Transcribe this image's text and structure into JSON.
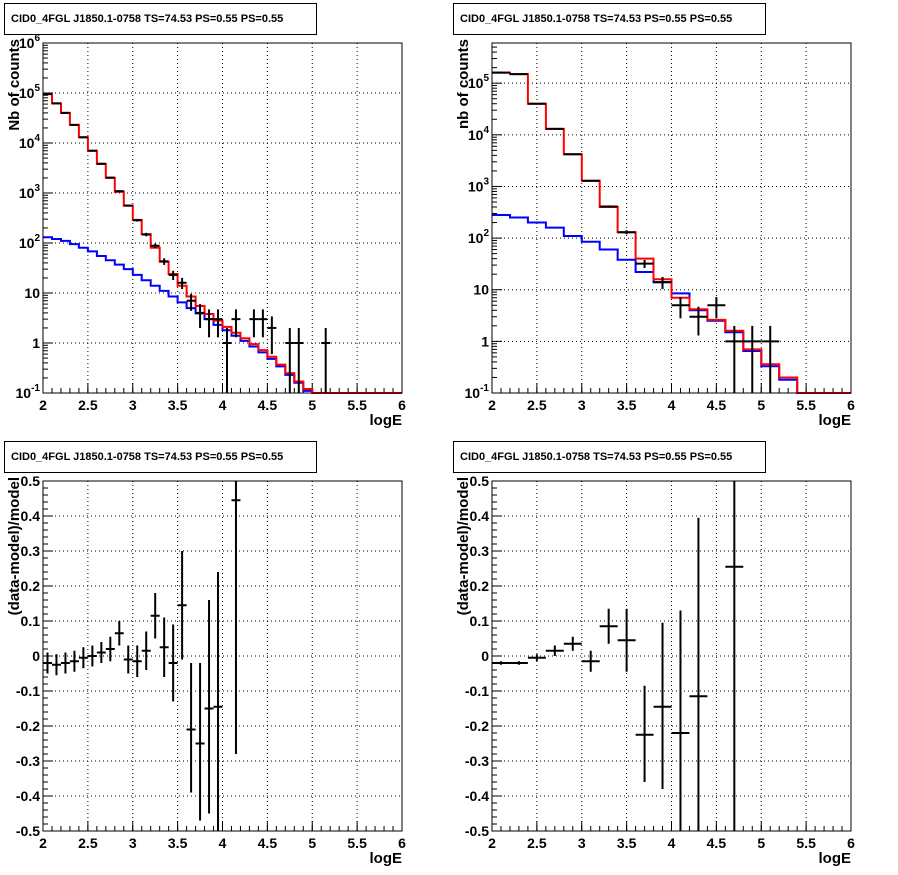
{
  "colors": {
    "axis": "#000000",
    "grid": "#000000",
    "data": "#000000",
    "total_model": "#ff0000",
    "source_model": "#0000ff"
  },
  "chart_data": [
    {
      "type": "step",
      "title": "CID0_4FGL J1850.1-0758 TS=74.53 PS=0.55 PS=0.55",
      "xlabel": "logE",
      "ylabel": "Nb of counts",
      "xlim": [
        2,
        6
      ],
      "ylim": [
        0.1,
        1000000
      ],
      "yscale": "log",
      "grid": true,
      "x_ticks": [
        2,
        2.5,
        3,
        3.5,
        4,
        4.5,
        5,
        5.5,
        6
      ],
      "y_ticks": [
        0.1,
        1,
        10,
        100,
        1000,
        10000,
        100000,
        1000000
      ],
      "y_tick_labels": [
        "10^-1",
        "1",
        "10",
        "10^2",
        "10^3",
        "10^4",
        "10^5",
        "10^6"
      ],
      "bin_width": 0.1,
      "bin_lows": [
        2.0,
        2.1,
        2.2,
        2.3,
        2.4,
        2.5,
        2.6,
        2.7,
        2.8,
        2.9,
        3.0,
        3.1,
        3.2,
        3.3,
        3.4,
        3.5,
        3.6,
        3.7,
        3.8,
        3.9,
        4.0,
        4.1,
        4.2,
        4.3,
        4.4,
        4.5,
        4.6,
        4.7,
        4.8,
        4.9,
        5.0,
        5.1,
        5.2,
        5.3,
        5.4,
        5.5,
        5.6,
        5.7,
        5.8,
        5.9
      ],
      "series": [
        {
          "role": "total_model",
          "values": [
            95000,
            62000,
            40000,
            23000,
            13000,
            7000,
            3800,
            2000,
            1050,
            560,
            290,
            150,
            80,
            42,
            24,
            14,
            8.5,
            5.5,
            3.8,
            2.8,
            2.1,
            1.6,
            1.25,
            0.95,
            0.72,
            0.53,
            0.37,
            0.25,
            0.17,
            0.12,
            0.1,
            0.1,
            0.1,
            0.1,
            0.1,
            0.1,
            0.1,
            0.1,
            0.1,
            0.1
          ]
        },
        {
          "role": "source_model",
          "values": [
            130,
            120,
            110,
            95,
            80,
            68,
            55,
            45,
            37,
            30,
            23,
            18,
            14,
            11,
            8.5,
            6.5,
            5,
            3.9,
            3.0,
            2.3,
            1.8,
            1.4,
            1.1,
            0.85,
            0.65,
            0.48,
            0.34,
            0.23,
            0.16,
            0.11,
            0.1,
            0.1,
            0.1,
            0.1,
            0.1,
            0.1,
            0.1,
            0.1,
            0.1,
            0.1
          ]
        }
      ],
      "points": [
        {
          "x": 2.05,
          "y": 95000,
          "ylo": 94700,
          "yhi": 95300
        },
        {
          "x": 2.15,
          "y": 62000,
          "ylo": 61750,
          "yhi": 62250
        },
        {
          "x": 2.25,
          "y": 40000,
          "ylo": 39800,
          "yhi": 40200
        },
        {
          "x": 2.35,
          "y": 23000,
          "ylo": 22850,
          "yhi": 23150
        },
        {
          "x": 2.45,
          "y": 13000,
          "ylo": 12890,
          "yhi": 13110
        },
        {
          "x": 2.55,
          "y": 7000,
          "ylo": 6920,
          "yhi": 7080
        },
        {
          "x": 2.65,
          "y": 3850,
          "ylo": 3790,
          "yhi": 3910
        },
        {
          "x": 2.75,
          "y": 2030,
          "ylo": 1985,
          "yhi": 2075
        },
        {
          "x": 2.85,
          "y": 1090,
          "ylo": 1057,
          "yhi": 1123
        },
        {
          "x": 2.95,
          "y": 560,
          "ylo": 536,
          "yhi": 584
        },
        {
          "x": 3.05,
          "y": 285,
          "ylo": 268,
          "yhi": 302
        },
        {
          "x": 3.15,
          "y": 148,
          "ylo": 136,
          "yhi": 160
        },
        {
          "x": 3.25,
          "y": 88,
          "ylo": 79,
          "yhi": 97
        },
        {
          "x": 3.35,
          "y": 43,
          "ylo": 36.5,
          "yhi": 49.5
        },
        {
          "x": 3.45,
          "y": 23,
          "ylo": 18.2,
          "yhi": 27.8
        },
        {
          "x": 3.55,
          "y": 16,
          "ylo": 12,
          "yhi": 20
        },
        {
          "x": 3.65,
          "y": 7,
          "ylo": 4.4,
          "yhi": 9.6
        },
        {
          "x": 3.75,
          "y": 4,
          "ylo": 2.0,
          "yhi": 6.0
        },
        {
          "x": 3.85,
          "y": 3,
          "ylo": 1.3,
          "yhi": 4.7
        },
        {
          "x": 3.95,
          "y": 3,
          "ylo": 1.3,
          "yhi": 4.7
        },
        {
          "x": 4.05,
          "y": 1,
          "ylo": 0.1,
          "yhi": 2
        },
        {
          "x": 4.15,
          "y": 3,
          "ylo": 1.3,
          "yhi": 4.7
        },
        {
          "x": 4.35,
          "y": 3,
          "ylo": 1.3,
          "yhi": 4.7
        },
        {
          "x": 4.45,
          "y": 3,
          "ylo": 1.3,
          "yhi": 4.7
        },
        {
          "x": 4.55,
          "y": 2,
          "ylo": 0.6,
          "yhi": 3.4
        },
        {
          "x": 4.75,
          "y": 1,
          "ylo": 0.1,
          "yhi": 2
        },
        {
          "x": 4.85,
          "y": 1,
          "ylo": 0.1,
          "yhi": 2
        },
        {
          "x": 5.15,
          "y": 1,
          "ylo": 0.1,
          "yhi": 2
        }
      ]
    },
    {
      "type": "step",
      "title": "CID0_4FGL J1850.1-0758 TS=74.53 PS=0.55 PS=0.55",
      "xlabel": "logE",
      "ylabel": "nb of counts",
      "xlim": [
        2,
        6
      ],
      "ylim": [
        0.1,
        600000
      ],
      "yscale": "log",
      "grid": true,
      "x_ticks": [
        2,
        2.5,
        3,
        3.5,
        4,
        4.5,
        5,
        5.5,
        6
      ],
      "y_ticks": [
        0.1,
        1,
        10,
        100,
        1000,
        10000,
        100000
      ],
      "y_tick_labels": [
        "10^-1",
        "1",
        "10",
        "10^2",
        "10^3",
        "10^4",
        "10^5"
      ],
      "bin_width": 0.2,
      "bin_lows": [
        2.0,
        2.2,
        2.4,
        2.6,
        2.8,
        3.0,
        3.2,
        3.4,
        3.6,
        3.8,
        4.0,
        4.2,
        4.4,
        4.6,
        4.8,
        5.0,
        5.2,
        5.4,
        5.6,
        5.8
      ],
      "series": [
        {
          "role": "total_model",
          "values": [
            160000,
            150000,
            40000,
            13000,
            4200,
            1300,
            400,
            130,
            40,
            16,
            7,
            4.2,
            2.6,
            1.6,
            0.7,
            0.36,
            0.2,
            0.1,
            0.1,
            0.1
          ]
        },
        {
          "role": "source_model",
          "values": [
            280,
            250,
            200,
            160,
            110,
            85,
            60,
            38,
            22,
            14,
            8.5,
            4,
            2.5,
            1.5,
            0.65,
            0.33,
            0.18,
            0.1,
            0.1,
            0.1
          ]
        }
      ],
      "points": [
        {
          "x": 2.1,
          "y": 160000,
          "ylo": 159500,
          "yhi": 160500
        },
        {
          "x": 2.3,
          "y": 150000,
          "ylo": 149500,
          "yhi": 150500
        },
        {
          "x": 2.5,
          "y": 40000,
          "ylo": 39800,
          "yhi": 40200
        },
        {
          "x": 2.7,
          "y": 13000,
          "ylo": 12890,
          "yhi": 13110
        },
        {
          "x": 2.9,
          "y": 4200,
          "ylo": 4135,
          "yhi": 4265
        },
        {
          "x": 3.1,
          "y": 1280,
          "ylo": 1244,
          "yhi": 1316
        },
        {
          "x": 3.3,
          "y": 410,
          "ylo": 390,
          "yhi": 430
        },
        {
          "x": 3.5,
          "y": 130,
          "ylo": 118.6,
          "yhi": 141.4
        },
        {
          "x": 3.7,
          "y": 32,
          "ylo": 26.3,
          "yhi": 37.7
        },
        {
          "x": 3.9,
          "y": 14,
          "ylo": 10.3,
          "yhi": 17.7
        },
        {
          "x": 4.1,
          "y": 5,
          "ylo": 2.8,
          "yhi": 7.2
        },
        {
          "x": 4.3,
          "y": 3,
          "ylo": 1.3,
          "yhi": 4.7
        },
        {
          "x": 4.5,
          "y": 5,
          "ylo": 2.8,
          "yhi": 7.2
        },
        {
          "x": 4.7,
          "y": 1,
          "ylo": 0.1,
          "yhi": 2
        },
        {
          "x": 4.9,
          "y": 1,
          "ylo": 0.1,
          "yhi": 2
        },
        {
          "x": 5.1,
          "y": 1,
          "ylo": 0.1,
          "yhi": 2
        }
      ]
    },
    {
      "type": "scatter",
      "title": "CID0_4FGL J1850.1-0758 TS=74.53 PS=0.55 PS=0.55",
      "xlabel": "logE",
      "ylabel": "(data-model)/model",
      "xlim": [
        2,
        6
      ],
      "ylim": [
        -0.5,
        0.5
      ],
      "grid": true,
      "x_ticks": [
        2,
        2.5,
        3,
        3.5,
        4,
        4.5,
        5,
        5.5,
        6
      ],
      "y_ticks": [
        -0.5,
        -0.4,
        -0.3,
        -0.2,
        -0.1,
        0,
        0.1,
        0.2,
        0.3,
        0.4,
        0.5
      ],
      "y_tick_labels": [
        "-0.5",
        "-0.4",
        "-0.3",
        "-0.2",
        "-0.1",
        "0",
        "0.1",
        "0.2",
        "0.3",
        "0.4",
        "0.5"
      ],
      "points": [
        {
          "x": 2.05,
          "xerr": 0.05,
          "y": -0.02,
          "ylo": -0.05,
          "yhi": 0.01
        },
        {
          "x": 2.15,
          "xerr": 0.05,
          "y": -0.025,
          "ylo": -0.055,
          "yhi": 0.005
        },
        {
          "x": 2.25,
          "xerr": 0.05,
          "y": -0.02,
          "ylo": -0.05,
          "yhi": 0.01
        },
        {
          "x": 2.35,
          "xerr": 0.05,
          "y": -0.015,
          "ylo": -0.045,
          "yhi": 0.015
        },
        {
          "x": 2.45,
          "xerr": 0.05,
          "y": -0.005,
          "ylo": -0.035,
          "yhi": 0.025
        },
        {
          "x": 2.55,
          "xerr": 0.05,
          "y": 0.0,
          "ylo": -0.03,
          "yhi": 0.03
        },
        {
          "x": 2.65,
          "xerr": 0.05,
          "y": 0.01,
          "ylo": -0.02,
          "yhi": 0.04
        },
        {
          "x": 2.75,
          "xerr": 0.05,
          "y": 0.02,
          "ylo": -0.015,
          "yhi": 0.055
        },
        {
          "x": 2.85,
          "xerr": 0.05,
          "y": 0.065,
          "ylo": 0.03,
          "yhi": 0.1
        },
        {
          "x": 2.95,
          "xerr": 0.05,
          "y": -0.01,
          "ylo": -0.05,
          "yhi": 0.03
        },
        {
          "x": 3.05,
          "xerr": 0.05,
          "y": -0.015,
          "ylo": -0.06,
          "yhi": 0.03
        },
        {
          "x": 3.15,
          "xerr": 0.05,
          "y": 0.015,
          "ylo": -0.04,
          "yhi": 0.07
        },
        {
          "x": 3.25,
          "xerr": 0.05,
          "y": 0.115,
          "ylo": 0.05,
          "yhi": 0.18
        },
        {
          "x": 3.35,
          "xerr": 0.05,
          "y": 0.025,
          "ylo": -0.06,
          "yhi": 0.11
        },
        {
          "x": 3.45,
          "xerr": 0.05,
          "y": -0.02,
          "ylo": -0.13,
          "yhi": 0.09
        },
        {
          "x": 3.55,
          "xerr": 0.05,
          "y": 0.145,
          "ylo": -0.01,
          "yhi": 0.3
        },
        {
          "x": 3.65,
          "xerr": 0.05,
          "y": -0.21,
          "ylo": -0.39,
          "yhi": -0.02
        },
        {
          "x": 3.75,
          "xerr": 0.05,
          "y": -0.25,
          "ylo": -0.47,
          "yhi": -0.02
        },
        {
          "x": 3.85,
          "xerr": 0.05,
          "y": -0.15,
          "ylo": -0.45,
          "yhi": 0.16
        },
        {
          "x": 3.95,
          "xerr": 0.05,
          "y": -0.145,
          "ylo": -0.5,
          "yhi": 0.24
        },
        {
          "x": 4.15,
          "xerr": 0.05,
          "y": 0.445,
          "ylo": -0.28,
          "yhi": 0.5
        }
      ]
    },
    {
      "type": "scatter",
      "title": "CID0_4FGL J1850.1-0758 TS=74.53 PS=0.55 PS=0.55",
      "xlabel": "logE",
      "ylabel": "(data-model)/model",
      "xlim": [
        2,
        6
      ],
      "ylim": [
        -0.5,
        0.5
      ],
      "grid": true,
      "x_ticks": [
        2,
        2.5,
        3,
        3.5,
        4,
        4.5,
        5,
        5.5,
        6
      ],
      "y_ticks": [
        -0.5,
        -0.4,
        -0.3,
        -0.2,
        -0.1,
        0,
        0.1,
        0.2,
        0.3,
        0.4,
        0.5
      ],
      "y_tick_labels": [
        "-0.5",
        "-0.4",
        "-0.3",
        "-0.2",
        "-0.1",
        "0",
        "0.1",
        "0.2",
        "0.3",
        "0.4",
        "0.5"
      ],
      "points": [
        {
          "x": 2.1,
          "xerr": 0.1,
          "y": -0.02,
          "ylo": -0.025,
          "yhi": -0.015
        },
        {
          "x": 2.3,
          "xerr": 0.1,
          "y": -0.02,
          "ylo": -0.025,
          "yhi": -0.015
        },
        {
          "x": 2.5,
          "xerr": 0.1,
          "y": -0.005,
          "ylo": -0.015,
          "yhi": 0.005
        },
        {
          "x": 2.7,
          "xerr": 0.1,
          "y": 0.015,
          "ylo": 0.0,
          "yhi": 0.03
        },
        {
          "x": 2.9,
          "xerr": 0.1,
          "y": 0.035,
          "ylo": 0.015,
          "yhi": 0.055
        },
        {
          "x": 3.1,
          "xerr": 0.1,
          "y": -0.015,
          "ylo": -0.045,
          "yhi": 0.015
        },
        {
          "x": 3.3,
          "xerr": 0.1,
          "y": 0.085,
          "ylo": 0.035,
          "yhi": 0.135
        },
        {
          "x": 3.5,
          "xerr": 0.1,
          "y": 0.045,
          "ylo": -0.045,
          "yhi": 0.135
        },
        {
          "x": 3.7,
          "xerr": 0.1,
          "y": -0.225,
          "ylo": -0.36,
          "yhi": -0.085
        },
        {
          "x": 3.9,
          "xerr": 0.1,
          "y": -0.145,
          "ylo": -0.38,
          "yhi": 0.095
        },
        {
          "x": 4.1,
          "xerr": 0.1,
          "y": -0.22,
          "ylo": -0.5,
          "yhi": 0.13
        },
        {
          "x": 4.3,
          "xerr": 0.1,
          "y": -0.115,
          "ylo": -0.5,
          "yhi": 0.395
        },
        {
          "x": 4.7,
          "xerr": 0.1,
          "y": 0.255,
          "ylo": -0.5,
          "yhi": 0.5
        }
      ]
    }
  ]
}
